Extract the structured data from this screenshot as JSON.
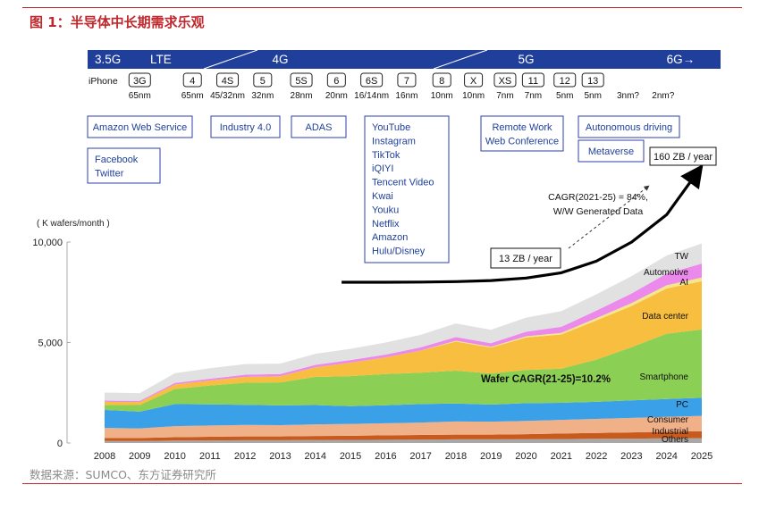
{
  "figure": {
    "title": "图 1：半导体中长期需求乐观",
    "source": "数据来源：SUMCO、东方证券研究所"
  },
  "generations": [
    {
      "label": "3.5G",
      "year": 2008
    },
    {
      "label": "LTE",
      "year": 2009.6
    },
    {
      "label": "4G",
      "year": 2013
    },
    {
      "label": "5G",
      "year": 2020
    },
    {
      "label": "6G→",
      "year": 2024.4
    }
  ],
  "iphone": {
    "row_label": "iPhone",
    "models": [
      {
        "model": "3G",
        "node": "65nm",
        "year": 2009
      },
      {
        "model": "4",
        "node": "65nm",
        "year": 2010.5
      },
      {
        "model": "4S",
        "node": "45/32nm",
        "year": 2011.5
      },
      {
        "model": "5",
        "node": "32nm",
        "year": 2012.5
      },
      {
        "model": "5S",
        "node": "28nm",
        "year": 2013.6
      },
      {
        "model": "6",
        "node": "20nm",
        "year": 2014.6
      },
      {
        "model": "6S",
        "node": "16/14nm",
        "year": 2015.6
      },
      {
        "model": "7",
        "node": "16nm",
        "year": 2016.6
      },
      {
        "model": "8",
        "node": "10nm",
        "year": 2017.6
      },
      {
        "model": "X",
        "node": "10nm",
        "year": 2018.5
      },
      {
        "model": "XS",
        "node": "7nm",
        "year": 2019.4
      },
      {
        "model": "11",
        "node": "7nm",
        "year": 2020.2
      },
      {
        "model": "12",
        "node": "5nm",
        "year": 2021.1
      },
      {
        "model": "13",
        "node": "5nm",
        "year": 2021.9
      },
      {
        "model": "",
        "node": "3nm?",
        "year": 2022.9
      },
      {
        "model": "",
        "node": "2nm?",
        "year": 2023.9
      }
    ]
  },
  "applications": [
    {
      "id": "aws",
      "lines": [
        "Amazon Web Service"
      ],
      "year": 2009.5
    },
    {
      "id": "facebook",
      "lines": [
        "Facebook",
        "Twitter"
      ],
      "year": 2009.0
    },
    {
      "id": "industry",
      "lines": [
        "Industry 4.0"
      ],
      "year": 2012
    },
    {
      "id": "adas",
      "lines": [
        "ADAS"
      ],
      "year": 2014
    },
    {
      "id": "streaming",
      "lines": [
        "YouTube",
        "Instagram",
        "TikTok",
        "iQIYI",
        "Tencent Video",
        "Kwai",
        "Youku",
        "Netflix",
        "Amazon",
        "Hulu/Disney"
      ],
      "year": 2016.2
    },
    {
      "id": "remote",
      "lines": [
        "Remote Work",
        "Web Conference"
      ],
      "year": 2020
    },
    {
      "id": "autonomous",
      "lines": [
        "Autonomous driving"
      ],
      "year": 2022.9
    },
    {
      "id": "metaverse",
      "lines": [
        "Metaverse"
      ],
      "year": 2022.8
    }
  ],
  "annotations": {
    "data_start": "13 ZB / year",
    "data_end": "160 ZB / year",
    "data_cagr_line1": "CAGR(2021-25) = 84%,",
    "data_cagr_line2": "W/W Generated Data",
    "wafer_cagr": "Wafer CAGR(21-25)=10.2%"
  },
  "colors": {
    "brand_red": "#c0282d",
    "generation_bar": "#1f3f9a",
    "box_border": "#2c3fae",
    "others": "#a8a8a8",
    "industrial": "#c85a1e",
    "consumer": "#f0b088",
    "pc": "#3aa0e8",
    "smartphone": "#8ccf55",
    "data_center": "#f7be3f",
    "ai": "#f2e88a",
    "automotive": "#ec8aec",
    "tw": "#e1e1e1"
  },
  "chart_data": {
    "type": "area",
    "stacked": true,
    "title": "",
    "ylabel": "( K wafers/month )",
    "xlabel": "",
    "ylim": [
      0,
      10000
    ],
    "yticks": [
      0,
      5000,
      10000
    ],
    "ytick_labels": [
      "0",
      "5,000",
      "10,000"
    ],
    "x": [
      2008,
      2009,
      2010,
      2011,
      2012,
      2013,
      2014,
      2015,
      2016,
      2017,
      2018,
      2019,
      2020,
      2021,
      2022,
      2023,
      2024,
      2025
    ],
    "series": [
      {
        "name": "Others",
        "color": "#a8a8a8",
        "values": [
          100,
          100,
          120,
          130,
          140,
          140,
          150,
          150,
          160,
          170,
          180,
          180,
          190,
          200,
          210,
          220,
          230,
          240
        ]
      },
      {
        "name": "Industrial",
        "color": "#c85a1e",
        "values": [
          150,
          150,
          170,
          180,
          190,
          190,
          200,
          210,
          220,
          230,
          240,
          240,
          250,
          270,
          290,
          310,
          330,
          350
        ]
      },
      {
        "name": "Consumer",
        "color": "#f0b088",
        "values": [
          500,
          480,
          550,
          560,
          570,
          560,
          580,
          590,
          600,
          620,
          650,
          640,
          660,
          680,
          700,
          720,
          740,
          760
        ]
      },
      {
        "name": "PC",
        "color": "#3aa0e8",
        "values": [
          900,
          830,
          1100,
          1050,
          1000,
          980,
          960,
          880,
          900,
          920,
          900,
          850,
          880,
          850,
          850,
          870,
          890,
          900
        ]
      },
      {
        "name": "Smartphone",
        "color": "#8ccf55",
        "values": [
          250,
          330,
          750,
          940,
          1100,
          1150,
          1400,
          1500,
          1550,
          1560,
          1630,
          1550,
          1650,
          1700,
          2100,
          2650,
          3250,
          3400
        ]
      },
      {
        "name": "Data center",
        "color": "#f7be3f",
        "values": [
          150,
          150,
          220,
          250,
          290,
          300,
          480,
          670,
          830,
          1100,
          1450,
          1290,
          1620,
          1700,
          1950,
          2050,
          2250,
          2400
        ]
      },
      {
        "name": "AI",
        "color": "#f2e88a",
        "values": [
          0,
          0,
          0,
          0,
          0,
          0,
          0,
          0,
          0,
          0,
          40,
          40,
          60,
          80,
          110,
          140,
          160,
          180
        ]
      },
      {
        "name": "Automotive",
        "color": "#ec8aec",
        "values": [
          60,
          60,
          80,
          90,
          110,
          110,
          120,
          130,
          140,
          160,
          180,
          180,
          230,
          300,
          380,
          480,
          580,
          700
        ]
      },
      {
        "name": "TW",
        "color": "#e1e1e1",
        "values": [
          400,
          380,
          480,
          520,
          530,
          520,
          550,
          560,
          600,
          620,
          680,
          660,
          700,
          780,
          810,
          860,
          900,
          1000
        ]
      }
    ],
    "overlay_line": {
      "name": "W/W Generated Data",
      "color": "#000000",
      "x": [
        2015,
        2016,
        2017,
        2018,
        2019,
        2020,
        2021,
        2022,
        2023,
        2024,
        2025
      ],
      "values": [
        8000,
        8000,
        8010,
        8030,
        8080,
        8200,
        8450,
        9000,
        9900,
        11200,
        13500
      ]
    }
  }
}
